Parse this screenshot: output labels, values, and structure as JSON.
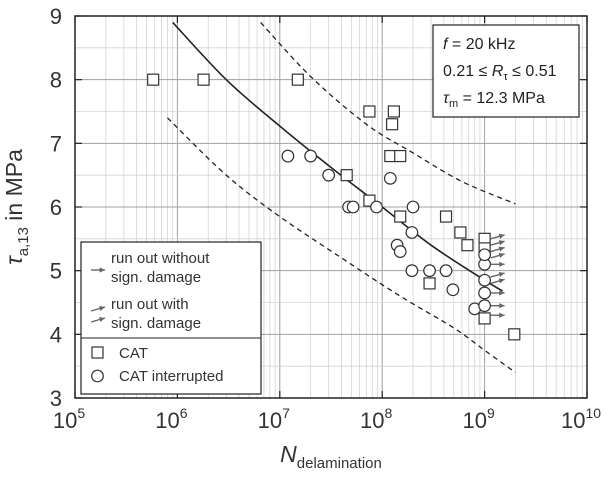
{
  "chart_data": {
    "type": "scatter",
    "xscale": "log",
    "xlim": [
      100000,
      10000000000
    ],
    "ylim": [
      3,
      9
    ],
    "grid": true,
    "x_ticks": [
      {
        "value": 100000,
        "base": "10",
        "exp": "5"
      },
      {
        "value": 1000000,
        "base": "10",
        "exp": "6"
      },
      {
        "value": 10000000,
        "base": "10",
        "exp": "7"
      },
      {
        "value": 100000000,
        "base": "10",
        "exp": "8"
      },
      {
        "value": 1000000000,
        "base": "10",
        "exp": "9"
      },
      {
        "value": 10000000000,
        "base": "10",
        "exp": "10"
      }
    ],
    "y_ticks": [
      3,
      4,
      5,
      6,
      7,
      8,
      9
    ],
    "xlabel": {
      "main": "N",
      "sub": "delamination"
    },
    "ylabel": {
      "main": "τ",
      "sub": "a,13",
      "rest": " in MPa"
    },
    "params": [
      {
        "id": "f",
        "text": "f = 20 kHz"
      },
      {
        "id": "r",
        "text": "0.21 ≤ Rτ ≤ 0.51"
      },
      {
        "id": "tau",
        "text": "τm = 12.3 MPa"
      }
    ],
    "legend": {
      "position": "bottom-left",
      "runout_no_damage": [
        "run out without",
        "sign. damage"
      ],
      "runout_damage": [
        "run out with",
        "sign. damage"
      ],
      "series": [
        {
          "marker": "square",
          "label": "CAT"
        },
        {
          "marker": "circle",
          "label": "CAT interrupted"
        }
      ]
    },
    "series": [
      {
        "name": "CAT",
        "marker": "square",
        "points": [
          [
            580000,
            8.0
          ],
          [
            1800000,
            8.0
          ],
          [
            15000000,
            8.0
          ],
          [
            75000000,
            7.5
          ],
          [
            130000000,
            7.5
          ],
          [
            125000000,
            7.3
          ],
          [
            120000000,
            6.8
          ],
          [
            150000000,
            6.8
          ],
          [
            45000000,
            6.5
          ],
          [
            75000000,
            6.1
          ],
          [
            150000000,
            5.85
          ],
          [
            420000000,
            5.85
          ],
          [
            580000000,
            5.6
          ],
          [
            680000000,
            5.4
          ],
          [
            1000000000,
            5.5
          ],
          [
            1000000000,
            5.35
          ],
          [
            290000000,
            4.8
          ],
          [
            1000000000,
            4.25
          ],
          [
            1950000000,
            4.0
          ]
        ]
      },
      {
        "name": "CAT interrupted",
        "marker": "circle",
        "points": [
          [
            12000000,
            6.8
          ],
          [
            20000000,
            6.8
          ],
          [
            30000000,
            6.5
          ],
          [
            47000000,
            6.0
          ],
          [
            52000000,
            6.0
          ],
          [
            88000000,
            6.0
          ],
          [
            120000000,
            6.45
          ],
          [
            200000000,
            6.0
          ],
          [
            195000000,
            5.6
          ],
          [
            140000000,
            5.4
          ],
          [
            150000000,
            5.3
          ],
          [
            195000000,
            5.0
          ],
          [
            290000000,
            5.0
          ],
          [
            420000000,
            5.0
          ],
          [
            490000000,
            4.7
          ],
          [
            800000000,
            4.4
          ],
          [
            1000000000,
            5.1
          ],
          [
            1000000000,
            4.85
          ],
          [
            1000000000,
            4.65
          ],
          [
            1000000000,
            4.45
          ],
          [
            1000000000,
            5.25
          ]
        ]
      }
    ],
    "curves": [
      {
        "name": "mean",
        "style": "solid",
        "points": [
          [
            900000,
            8.9
          ],
          [
            3000000,
            8.0
          ],
          [
            10000000,
            7.27
          ],
          [
            30000000,
            6.65
          ],
          [
            100000000,
            6.0
          ],
          [
            300000000,
            5.4
          ],
          [
            1000000000,
            4.85
          ],
          [
            1500000000,
            4.68
          ]
        ]
      },
      {
        "name": "upper",
        "style": "dashed",
        "points": [
          [
            6500000,
            8.9
          ],
          [
            20000000,
            8.05
          ],
          [
            70000000,
            7.3
          ],
          [
            200000000,
            6.85
          ],
          [
            600000000,
            6.4
          ],
          [
            2000000000,
            6.05
          ]
        ]
      },
      {
        "name": "lower",
        "style": "dashed",
        "points": [
          [
            800000,
            7.4
          ],
          [
            3000000,
            6.5
          ],
          [
            10000000,
            5.85
          ],
          [
            40000000,
            5.2
          ],
          [
            150000000,
            4.6
          ],
          [
            500000000,
            4.1
          ],
          [
            1000000000,
            3.75
          ],
          [
            2000000000,
            3.4
          ]
        ]
      }
    ],
    "runout_arrows": [
      {
        "x": 1000000000,
        "y": 5.5,
        "damage": true
      },
      {
        "x": 1000000000,
        "y": 5.4,
        "damage": true
      },
      {
        "x": 1000000000,
        "y": 5.3,
        "damage": true
      },
      {
        "x": 1000000000,
        "y": 5.2,
        "damage": true
      },
      {
        "x": 1000000000,
        "y": 5.1,
        "damage": false
      },
      {
        "x": 1000000000,
        "y": 4.9,
        "damage": true
      },
      {
        "x": 1000000000,
        "y": 4.8,
        "damage": true
      },
      {
        "x": 1000000000,
        "y": 4.65,
        "damage": false
      },
      {
        "x": 1000000000,
        "y": 4.45,
        "damage": false
      },
      {
        "x": 1000000000,
        "y": 4.3,
        "damage": false
      }
    ],
    "colors": {
      "axis": "#222222",
      "grid": "#a0a0a0",
      "curve": "#222222",
      "marker": "#333333",
      "arrow": "#666666"
    }
  }
}
